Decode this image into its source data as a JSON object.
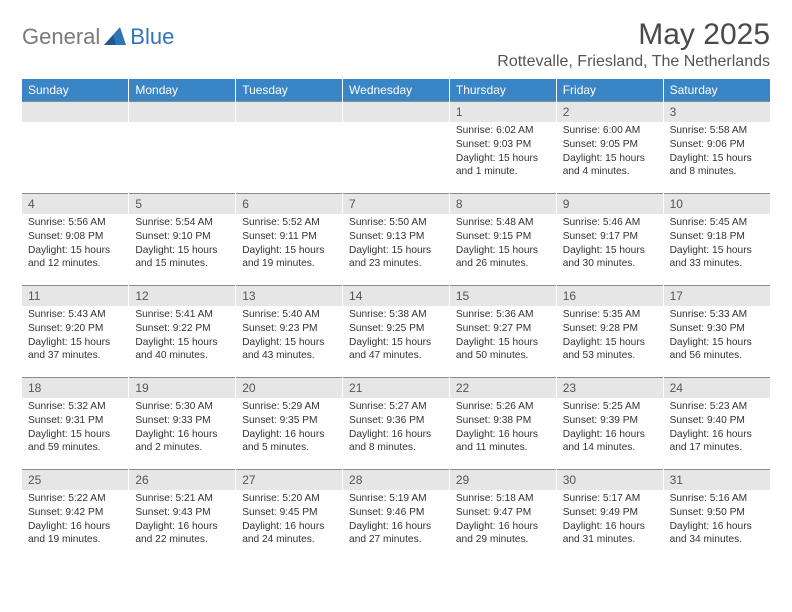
{
  "logo": {
    "text1": "General",
    "text2": "Blue"
  },
  "title": "May 2025",
  "subtitle": "Rottevalle, Friesland, The Netherlands",
  "colors": {
    "header_bg": "#3a85c6",
    "header_text": "#ffffff",
    "daynum_bg": "#e6e6e6",
    "daynum_border": "#8a8a8a",
    "body_text": "#333333",
    "title_text": "#4a4a4a",
    "logo_gray": "#7a7a7a",
    "logo_blue": "#2f76b8",
    "page_bg": "#ffffff"
  },
  "typography": {
    "title_fontsize": 30,
    "subtitle_fontsize": 16,
    "header_fontsize": 12,
    "daynum_fontsize": 12,
    "body_fontsize": 10.2,
    "logo_fontsize": 22
  },
  "columns": [
    "Sunday",
    "Monday",
    "Tuesday",
    "Wednesday",
    "Thursday",
    "Friday",
    "Saturday"
  ],
  "weeks": [
    [
      {
        "num": "",
        "empty": true
      },
      {
        "num": "",
        "empty": true
      },
      {
        "num": "",
        "empty": true
      },
      {
        "num": "",
        "empty": true
      },
      {
        "num": "1",
        "sunrise": "Sunrise: 6:02 AM",
        "sunset": "Sunset: 9:03 PM",
        "daylight": "Daylight: 15 hours and 1 minute."
      },
      {
        "num": "2",
        "sunrise": "Sunrise: 6:00 AM",
        "sunset": "Sunset: 9:05 PM",
        "daylight": "Daylight: 15 hours and 4 minutes."
      },
      {
        "num": "3",
        "sunrise": "Sunrise: 5:58 AM",
        "sunset": "Sunset: 9:06 PM",
        "daylight": "Daylight: 15 hours and 8 minutes."
      }
    ],
    [
      {
        "num": "4",
        "sunrise": "Sunrise: 5:56 AM",
        "sunset": "Sunset: 9:08 PM",
        "daylight": "Daylight: 15 hours and 12 minutes."
      },
      {
        "num": "5",
        "sunrise": "Sunrise: 5:54 AM",
        "sunset": "Sunset: 9:10 PM",
        "daylight": "Daylight: 15 hours and 15 minutes."
      },
      {
        "num": "6",
        "sunrise": "Sunrise: 5:52 AM",
        "sunset": "Sunset: 9:11 PM",
        "daylight": "Daylight: 15 hours and 19 minutes."
      },
      {
        "num": "7",
        "sunrise": "Sunrise: 5:50 AM",
        "sunset": "Sunset: 9:13 PM",
        "daylight": "Daylight: 15 hours and 23 minutes."
      },
      {
        "num": "8",
        "sunrise": "Sunrise: 5:48 AM",
        "sunset": "Sunset: 9:15 PM",
        "daylight": "Daylight: 15 hours and 26 minutes."
      },
      {
        "num": "9",
        "sunrise": "Sunrise: 5:46 AM",
        "sunset": "Sunset: 9:17 PM",
        "daylight": "Daylight: 15 hours and 30 minutes."
      },
      {
        "num": "10",
        "sunrise": "Sunrise: 5:45 AM",
        "sunset": "Sunset: 9:18 PM",
        "daylight": "Daylight: 15 hours and 33 minutes."
      }
    ],
    [
      {
        "num": "11",
        "sunrise": "Sunrise: 5:43 AM",
        "sunset": "Sunset: 9:20 PM",
        "daylight": "Daylight: 15 hours and 37 minutes."
      },
      {
        "num": "12",
        "sunrise": "Sunrise: 5:41 AM",
        "sunset": "Sunset: 9:22 PM",
        "daylight": "Daylight: 15 hours and 40 minutes."
      },
      {
        "num": "13",
        "sunrise": "Sunrise: 5:40 AM",
        "sunset": "Sunset: 9:23 PM",
        "daylight": "Daylight: 15 hours and 43 minutes."
      },
      {
        "num": "14",
        "sunrise": "Sunrise: 5:38 AM",
        "sunset": "Sunset: 9:25 PM",
        "daylight": "Daylight: 15 hours and 47 minutes."
      },
      {
        "num": "15",
        "sunrise": "Sunrise: 5:36 AM",
        "sunset": "Sunset: 9:27 PM",
        "daylight": "Daylight: 15 hours and 50 minutes."
      },
      {
        "num": "16",
        "sunrise": "Sunrise: 5:35 AM",
        "sunset": "Sunset: 9:28 PM",
        "daylight": "Daylight: 15 hours and 53 minutes."
      },
      {
        "num": "17",
        "sunrise": "Sunrise: 5:33 AM",
        "sunset": "Sunset: 9:30 PM",
        "daylight": "Daylight: 15 hours and 56 minutes."
      }
    ],
    [
      {
        "num": "18",
        "sunrise": "Sunrise: 5:32 AM",
        "sunset": "Sunset: 9:31 PM",
        "daylight": "Daylight: 15 hours and 59 minutes."
      },
      {
        "num": "19",
        "sunrise": "Sunrise: 5:30 AM",
        "sunset": "Sunset: 9:33 PM",
        "daylight": "Daylight: 16 hours and 2 minutes."
      },
      {
        "num": "20",
        "sunrise": "Sunrise: 5:29 AM",
        "sunset": "Sunset: 9:35 PM",
        "daylight": "Daylight: 16 hours and 5 minutes."
      },
      {
        "num": "21",
        "sunrise": "Sunrise: 5:27 AM",
        "sunset": "Sunset: 9:36 PM",
        "daylight": "Daylight: 16 hours and 8 minutes."
      },
      {
        "num": "22",
        "sunrise": "Sunrise: 5:26 AM",
        "sunset": "Sunset: 9:38 PM",
        "daylight": "Daylight: 16 hours and 11 minutes."
      },
      {
        "num": "23",
        "sunrise": "Sunrise: 5:25 AM",
        "sunset": "Sunset: 9:39 PM",
        "daylight": "Daylight: 16 hours and 14 minutes."
      },
      {
        "num": "24",
        "sunrise": "Sunrise: 5:23 AM",
        "sunset": "Sunset: 9:40 PM",
        "daylight": "Daylight: 16 hours and 17 minutes."
      }
    ],
    [
      {
        "num": "25",
        "sunrise": "Sunrise: 5:22 AM",
        "sunset": "Sunset: 9:42 PM",
        "daylight": "Daylight: 16 hours and 19 minutes."
      },
      {
        "num": "26",
        "sunrise": "Sunrise: 5:21 AM",
        "sunset": "Sunset: 9:43 PM",
        "daylight": "Daylight: 16 hours and 22 minutes."
      },
      {
        "num": "27",
        "sunrise": "Sunrise: 5:20 AM",
        "sunset": "Sunset: 9:45 PM",
        "daylight": "Daylight: 16 hours and 24 minutes."
      },
      {
        "num": "28",
        "sunrise": "Sunrise: 5:19 AM",
        "sunset": "Sunset: 9:46 PM",
        "daylight": "Daylight: 16 hours and 27 minutes."
      },
      {
        "num": "29",
        "sunrise": "Sunrise: 5:18 AM",
        "sunset": "Sunset: 9:47 PM",
        "daylight": "Daylight: 16 hours and 29 minutes."
      },
      {
        "num": "30",
        "sunrise": "Sunrise: 5:17 AM",
        "sunset": "Sunset: 9:49 PM",
        "daylight": "Daylight: 16 hours and 31 minutes."
      },
      {
        "num": "31",
        "sunrise": "Sunrise: 5:16 AM",
        "sunset": "Sunset: 9:50 PM",
        "daylight": "Daylight: 16 hours and 34 minutes."
      }
    ]
  ]
}
